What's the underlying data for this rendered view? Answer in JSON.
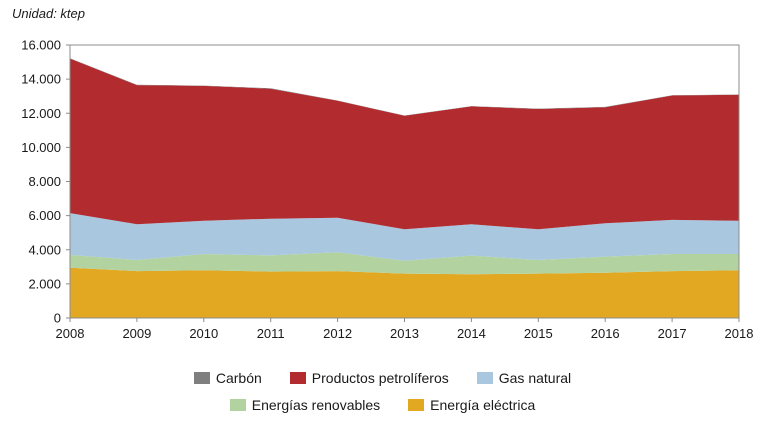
{
  "chart_data": {
    "type": "area",
    "stacked": true,
    "unit_label": "Unidad: ktep",
    "x": [
      "2008",
      "2009",
      "2010",
      "2011",
      "2012",
      "2013",
      "2014",
      "2015",
      "2016",
      "2017",
      "2018"
    ],
    "ylim": [
      0,
      16000
    ],
    "yticks": [
      0,
      2000,
      4000,
      6000,
      8000,
      10000,
      12000,
      14000,
      16000
    ],
    "ytick_labels": [
      "0",
      "2.000",
      "4.000",
      "6.000",
      "8.000",
      "10.000",
      "12.000",
      "14.000",
      "16.000"
    ],
    "grid": false,
    "legend_position": "bottom",
    "series": [
      {
        "name": "Energía eléctrica",
        "color": "#e2a821",
        "values": [
          2950,
          2750,
          2800,
          2720,
          2750,
          2600,
          2560,
          2600,
          2650,
          2750,
          2800
        ]
      },
      {
        "name": "Energías renovables",
        "color": "#b2d3a0",
        "values": [
          750,
          650,
          950,
          950,
          1100,
          750,
          1100,
          800,
          950,
          1000,
          950
        ]
      },
      {
        "name": "Gas natural",
        "color": "#a9c7df",
        "values": [
          2450,
          2100,
          1950,
          2150,
          2030,
          1850,
          1830,
          1800,
          1950,
          2000,
          1950
        ]
      },
      {
        "name": "Productos petrolíferos",
        "color": "#b22b2f",
        "values": [
          9050,
          8150,
          7900,
          7620,
          6850,
          6650,
          6910,
          7050,
          6800,
          7290,
          7380
        ]
      },
      {
        "name": "Carbón",
        "color": "#7f7f7f",
        "values": [
          20,
          20,
          20,
          20,
          20,
          20,
          20,
          20,
          20,
          20,
          20
        ]
      }
    ],
    "legend_rows": [
      [
        "Carbón",
        "Productos petrolíferos",
        "Gas natural"
      ],
      [
        "Energías renovables",
        "Energía eléctrica"
      ]
    ]
  }
}
